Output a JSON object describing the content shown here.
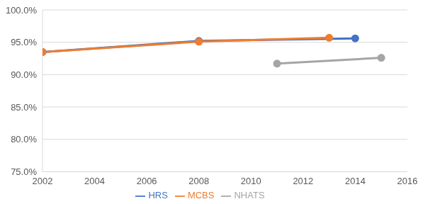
{
  "chart_data": {
    "type": "line",
    "xlim": [
      2002,
      2016
    ],
    "xticks": [
      2002,
      2004,
      2006,
      2008,
      2010,
      2012,
      2014,
      2016
    ],
    "ylim": [
      75,
      100
    ],
    "yticks": [
      {
        "value": 75,
        "label": "75.0%"
      },
      {
        "value": 80,
        "label": "80.0%"
      },
      {
        "value": 85,
        "label": "85.0%"
      },
      {
        "value": 90,
        "label": "90.0%"
      },
      {
        "value": 95,
        "label": "95.0%"
      },
      {
        "value": 100,
        "label": "100.0%"
      }
    ],
    "grid": true,
    "legend": "bottom",
    "marker": "circle",
    "series": [
      {
        "name": "HRS",
        "color": "#4472c4",
        "x": [
          2002,
          2008,
          2014
        ],
        "values": [
          93.5,
          95.2,
          95.6
        ]
      },
      {
        "name": "MCBS",
        "color": "#ed7d31",
        "x": [
          2002,
          2008,
          2013
        ],
        "values": [
          93.5,
          95.1,
          95.7
        ]
      },
      {
        "name": "NHATS",
        "color": "#a5a5a5",
        "x": [
          2011,
          2015
        ],
        "values": [
          91.7,
          92.6
        ]
      }
    ]
  }
}
